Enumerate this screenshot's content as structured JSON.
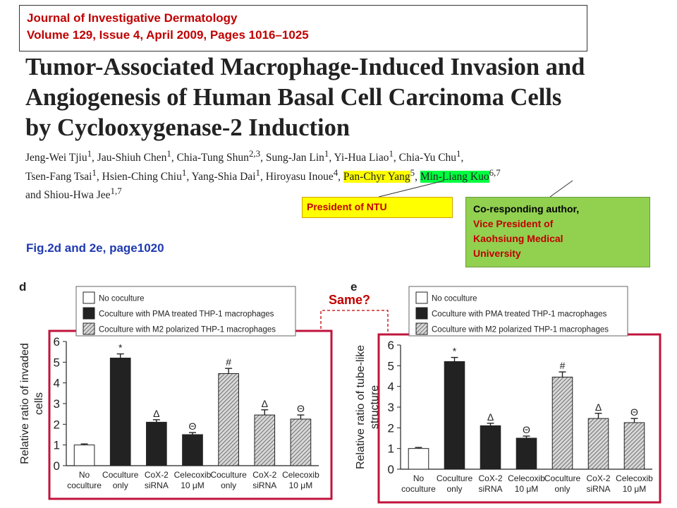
{
  "journal": {
    "name": "Journal of Investigative Dermatology",
    "issue": "Volume 129, Issue 4, April 2009, Pages 1016–1025"
  },
  "title_lines": [
    "Tumor-Associated Macrophage-Induced Invasion and",
    "Angiogenesis of Human Basal Cell Carcinoma Cells",
    "by Cyclooxygenase-2 Induction"
  ],
  "authors": {
    "line1": [
      "Jeng-Wei Tjiu",
      "1",
      ", Jau-Shiuh Chen",
      "1",
      ", Chia-Tung Shun",
      "2,3",
      ", Sung-Jan Lin",
      "1",
      ", Yi-Hua Liao",
      "1",
      ", Chia-Yu Chu",
      "1",
      ","
    ],
    "line2_pre": [
      "Tsen-Fang Tsai",
      "1",
      ", Hsien-Ching Chiu",
      "1",
      ", Yang-Shia Dai",
      "1",
      ", Hiroyasu Inoue",
      "4",
      ", "
    ],
    "highlight_yellow": "Pan-Chyr Yang",
    "yellow_sup": "5",
    "highlight_green": "Min-Liang Kuo",
    "green_sup": "6,7",
    "line3": [
      "and Shiou-Hwa Jee",
      "1,7"
    ]
  },
  "annotations": {
    "president": "President of NTU",
    "corresponding": [
      "Co-responding author,",
      "Vice President of",
      "Kaohsiung Medical",
      "University"
    ]
  },
  "fig_caption": "Fig.2d and 2e, page1020",
  "same_label": "Same?",
  "colors": {
    "accent_red": "#c00000",
    "caption_blue": "#1f3ab0",
    "highlight_yellow": "#ffff00",
    "highlight_green": "#00ff40",
    "note_green": "#92d050"
  },
  "chart_data": [
    {
      "type": "bar",
      "panel": "d",
      "ylabel_lines": [
        "Relative ratio of invaded",
        "cells"
      ],
      "ylim": [
        0,
        6
      ],
      "yticks": [
        "0",
        "1",
        "2",
        "3",
        "4",
        "5",
        "6"
      ],
      "legend": [
        "No coculture",
        "Coculture with PMA treated THP-1 macrophages",
        "Coculture with M2 polarized  THP-1 macrophages"
      ],
      "categories": [
        [
          "No",
          "coculture"
        ],
        [
          "Coculture",
          "only"
        ],
        [
          "CoX-2",
          "siRNA"
        ],
        [
          "Celecoxib",
          "10 μM"
        ],
        [
          "Coculture",
          "only"
        ],
        [
          "CoX-2",
          "siRNA"
        ],
        [
          "Celecoxib",
          "10 μM"
        ]
      ],
      "values": [
        1.0,
        5.2,
        2.1,
        1.5,
        4.45,
        2.45,
        2.25
      ],
      "errors": [
        0.05,
        0.2,
        0.12,
        0.1,
        0.25,
        0.25,
        0.2
      ],
      "fills": [
        "white",
        "black",
        "black",
        "black",
        "hatch",
        "hatch",
        "hatch"
      ],
      "marks": [
        "",
        "*",
        "Δ",
        "Θ",
        "#",
        "Δ",
        "Θ"
      ]
    },
    {
      "type": "bar",
      "panel": "e",
      "ylabel_lines": [
        "Relative ratio of tube-like",
        "structure"
      ],
      "ylim": [
        0,
        6
      ],
      "yticks": [
        "0",
        "1",
        "2",
        "3",
        "4",
        "5",
        "6"
      ],
      "legend": [
        "No coculture",
        "Coculture with PMA treated THP-1 macrophages",
        "Coculture with M2 polarized  THP-1 macrophages"
      ],
      "categories": [
        [
          "No",
          "coculture"
        ],
        [
          "Coculture",
          "only"
        ],
        [
          "CoX-2",
          "siRNA"
        ],
        [
          "Celecoxib",
          "10 μM"
        ],
        [
          "Coculture",
          "only"
        ],
        [
          "CoX-2",
          "siRNA"
        ],
        [
          "Celecoxib",
          "10 μM"
        ]
      ],
      "values": [
        1.0,
        5.2,
        2.1,
        1.5,
        4.45,
        2.45,
        2.25
      ],
      "errors": [
        0.05,
        0.2,
        0.12,
        0.1,
        0.25,
        0.25,
        0.2
      ],
      "fills": [
        "white",
        "black",
        "black",
        "black",
        "hatch",
        "hatch",
        "hatch"
      ],
      "marks": [
        "",
        "*",
        "Δ",
        "Θ",
        "#",
        "Δ",
        "Θ"
      ]
    }
  ]
}
